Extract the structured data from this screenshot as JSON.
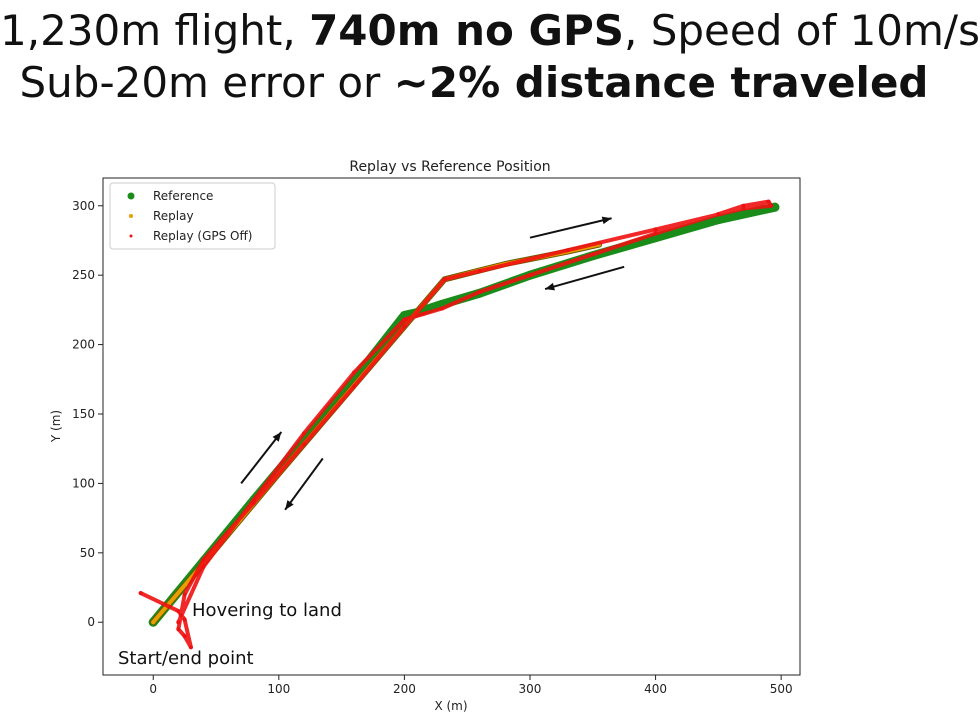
{
  "headline": {
    "line1": {
      "pre": "1,230m flight, ",
      "bold": "740m no GPS",
      "post": ", Speed of 10m/s"
    },
    "line2": {
      "pre": "Sub-20m error or ",
      "bold": "~2% distance traveled"
    }
  },
  "chart_data": {
    "type": "line",
    "title": "Replay vs Reference Position",
    "xlabel": "X (m)",
    "ylabel": "Y (m)",
    "xlim": [
      -40,
      515
    ],
    "ylim": [
      -38,
      320
    ],
    "xticks": [
      0,
      100,
      200,
      300,
      400,
      500
    ],
    "yticks": [
      0,
      50,
      100,
      150,
      200,
      250,
      300
    ],
    "grid": false,
    "legend": "top-left",
    "series": [
      {
        "name": "Reference",
        "color": "#1a8c1a",
        "marker": "dot",
        "x": [
          0,
          40,
          80,
          120,
          160,
          200,
          210,
          230,
          260,
          300,
          350,
          400,
          450,
          495
        ],
        "y": [
          0,
          44,
          88,
          131,
          175,
          221,
          223,
          229,
          237,
          250,
          264,
          277,
          290,
          299
        ]
      },
      {
        "name": "Replay",
        "color": "#e8a000",
        "marker": "dot",
        "x": [
          0,
          50,
          100,
          150,
          200,
          215,
          232,
          280,
          330,
          355
        ],
        "y": [
          0,
          53,
          107,
          160,
          213,
          229,
          247,
          258,
          267,
          272
        ]
      },
      {
        "name": "Replay (GPS Off)",
        "color": "#ee1111",
        "marker": "dot",
        "x": [
          20,
          40,
          80,
          120,
          160,
          200,
          215,
          230,
          260,
          300,
          350,
          400,
          450,
          470,
          490,
          492,
          470,
          400,
          330,
          260,
          232,
          200,
          160,
          120,
          80,
          40,
          25,
          22,
          20,
          25,
          30,
          25,
          20,
          -10
        ],
        "y": [
          0,
          40,
          88,
          136,
          180,
          218,
          222,
          226,
          238,
          250,
          265,
          280,
          294,
          300,
          303,
          300,
          298,
          283,
          268,
          253,
          247,
          213,
          170,
          128,
          86,
          45,
          20,
          5,
          -5,
          -10,
          -18,
          2,
          8,
          21
        ]
      }
    ],
    "annotations": [
      {
        "text": "Hovering to land"
      },
      {
        "text": "Start/end point"
      }
    ],
    "arrows": [
      {
        "direction": "outbound",
        "x": [
          300,
          365
        ],
        "y": [
          277,
          291
        ]
      },
      {
        "direction": "return",
        "x": [
          375,
          312
        ],
        "y": [
          256,
          240
        ]
      },
      {
        "direction": "outbound",
        "x": [
          70,
          102
        ],
        "y": [
          100,
          137
        ]
      },
      {
        "direction": "return",
        "x": [
          135,
          105
        ],
        "y": [
          118,
          81
        ]
      }
    ]
  }
}
